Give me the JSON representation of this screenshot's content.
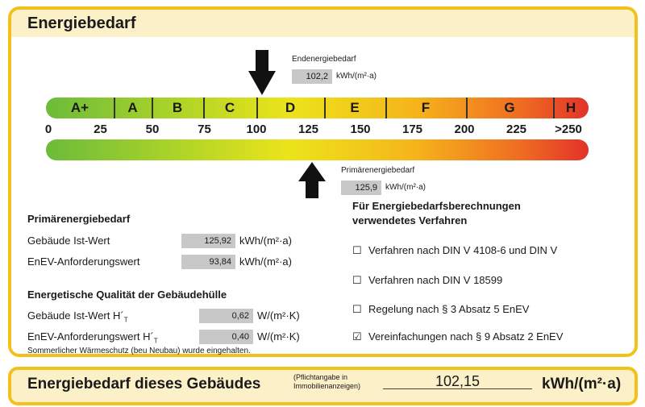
{
  "title": "Energiebedarf",
  "endenergie": {
    "label": "Endenergiebedarf",
    "value": "102,2",
    "unit": "kWh/(m²·a)",
    "marker": 102.2
  },
  "primaer_marker": {
    "label": "Primärenergiebedarf",
    "value": "125,9",
    "unit": "kWh/(m²·a)",
    "marker": 125.9
  },
  "scale": {
    "classes": [
      "A+",
      "A",
      "B",
      "C",
      "D",
      "E",
      "F",
      "G",
      "H"
    ],
    "ticks": [
      "0",
      "25",
      "50",
      "75",
      "100",
      "125",
      "150",
      "175",
      "200",
      "225",
      ">250"
    ]
  },
  "primaer_section": {
    "heading": "Primärenergiebedarf",
    "rows": [
      {
        "label": "Gebäude Ist-Wert",
        "value": "125,92",
        "unit": "kWh/(m²·a)"
      },
      {
        "label": "EnEV-Anforderungswert",
        "value": "93,84",
        "unit": "kWh/(m²·a)"
      }
    ]
  },
  "huelle_section": {
    "heading": "Energetische Qualität der Gebäudehülle",
    "rows": [
      {
        "label": "Gebäude Ist-Wert H´",
        "sub": "T",
        "value": "0,62",
        "unit": "W/(m²·K)"
      },
      {
        "label": "EnEV-Anforderungswert H´",
        "sub": "T",
        "value": "0,40",
        "unit": "W/(m²·K)"
      }
    ],
    "note": "Sommerlicher Wärmeschutz (beu Neubau) wurde eingehalten."
  },
  "verfahren": {
    "heading_line1": "Für Energiebedarfsberechnungen",
    "heading_line2": "verwendetes Verfahren",
    "items": [
      {
        "label": "Verfahren nach DIN V 4108-6 und DIN V",
        "checked": false
      },
      {
        "label": "Verfahren nach DIN V 18599",
        "checked": false
      },
      {
        "label": "Regelung nach § 3 Absatz 5 EnEV",
        "checked": false
      },
      {
        "label": "Vereinfachungen nach § 9 Absatz 2 EnEV",
        "checked": true
      }
    ]
  },
  "bottom": {
    "title": "Energiebedarf dieses Gebäudes",
    "note_line1": "(Pflichtangabe in",
    "note_line2": "Immobilienanzeigen)",
    "value": "102,15",
    "unit": "kWh/(m²·a)"
  },
  "colors": {
    "frame": "#f2c21b",
    "header_band": "#fbf0c8",
    "value_box": "#c8c8c8"
  }
}
